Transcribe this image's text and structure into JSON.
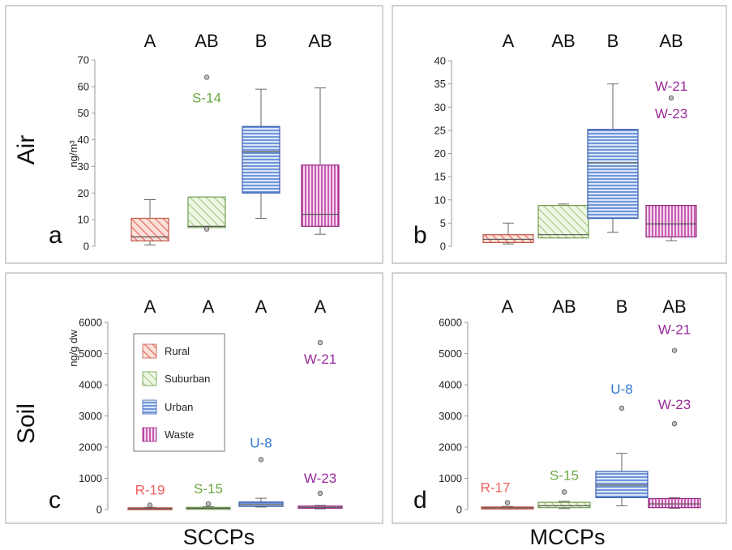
{
  "figure": {
    "row_labels": [
      "Air",
      "Soil"
    ],
    "column_labels": [
      "SCCPs",
      "MCCPs"
    ],
    "legend": [
      {
        "name": "Rural",
        "color": "#f08070",
        "pattern": "diagonal-hatch"
      },
      {
        "name": "Suburban",
        "color": "#9ccc70",
        "pattern": "diagonal-hatch"
      },
      {
        "name": "Urban",
        "color": "#5b87d6",
        "pattern": "horizontal-lines"
      },
      {
        "name": "Waste",
        "color": "#c040b0",
        "pattern": "vertical-lines"
      }
    ],
    "outlier_colors": {
      "Rural": "#f06060",
      "Suburban": "#6aa842",
      "Urban": "#2f78d0",
      "Waste": "#9a2a9a"
    }
  },
  "chart_data": [
    {
      "type": "boxplot",
      "panel": "a",
      "ylabel": "ng/m³",
      "ylim": [
        0,
        70
      ],
      "yticks": [
        0,
        10,
        20,
        30,
        40,
        50,
        60,
        70
      ],
      "groups": [
        "Rural",
        "Suburban",
        "Urban",
        "Waste"
      ],
      "significance_letters": [
        "A",
        "AB",
        "B",
        "AB"
      ],
      "boxes": [
        {
          "group": "Rural",
          "min": 0.5,
          "q1": 2,
          "median": 3.5,
          "q3": 10.5,
          "max": 17.5
        },
        {
          "group": "Suburban",
          "min": 7,
          "q1": 7,
          "median": 7.5,
          "q3": 18.5,
          "max": 18.5
        },
        {
          "group": "Urban",
          "min": 10.5,
          "q1": 20,
          "median": 35.5,
          "q3": 45,
          "max": 59
        },
        {
          "group": "Waste",
          "min": 4.5,
          "q1": 7.5,
          "median": 12,
          "q3": 30.5,
          "max": 59.5
        }
      ],
      "outliers": [
        {
          "group": "Suburban",
          "value": 63.5,
          "label": "S-14"
        },
        {
          "group": "Suburban",
          "value": 6.5,
          "label": ""
        }
      ]
    },
    {
      "type": "boxplot",
      "panel": "b",
      "ylabel": "",
      "ylim": [
        0,
        40
      ],
      "yticks": [
        0,
        5,
        10,
        15,
        20,
        25,
        30,
        35,
        40
      ],
      "groups": [
        "Rural",
        "Suburban",
        "Urban",
        "Waste"
      ],
      "significance_letters": [
        "A",
        "AB",
        "B",
        "AB"
      ],
      "boxes": [
        {
          "group": "Rural",
          "min": 0.5,
          "q1": 0.8,
          "median": 1.5,
          "q3": 2.5,
          "max": 5
        },
        {
          "group": "Suburban",
          "min": 1.8,
          "q1": 1.8,
          "median": 2.5,
          "q3": 8.8,
          "max": 9.1
        },
        {
          "group": "Urban",
          "min": 3,
          "q1": 6,
          "median": 18,
          "q3": 25.2,
          "max": 35
        },
        {
          "group": "Waste",
          "min": 1.2,
          "q1": 2,
          "median": 4.8,
          "q3": 8.8,
          "max": 8.8
        }
      ],
      "outliers": [
        {
          "group": "Waste",
          "value": 32,
          "label": "W-21"
        },
        {
          "group": "Waste",
          "value": 32,
          "label": "W-23"
        }
      ]
    },
    {
      "type": "boxplot",
      "panel": "c",
      "ylabel": "ng/g dw",
      "ylim": [
        0,
        6000
      ],
      "yticks": [
        0,
        1000,
        2000,
        3000,
        4000,
        5000,
        6000
      ],
      "groups": [
        "Rural",
        "Suburban",
        "Urban",
        "Waste"
      ],
      "significance_letters": [
        "A",
        "A",
        "A",
        "A"
      ],
      "boxes": [
        {
          "group": "Rural",
          "min": 5,
          "q1": 15,
          "median": 30,
          "q3": 55,
          "max": 70
        },
        {
          "group": "Suburban",
          "min": 10,
          "q1": 20,
          "median": 40,
          "q3": 70,
          "max": 90
        },
        {
          "group": "Urban",
          "min": 80,
          "q1": 100,
          "median": 160,
          "q3": 240,
          "max": 360
        },
        {
          "group": "Waste",
          "min": 20,
          "q1": 40,
          "median": 70,
          "q3": 110,
          "max": 130
        }
      ],
      "outliers": [
        {
          "group": "Rural",
          "value": 140,
          "label": "R-19"
        },
        {
          "group": "Suburban",
          "value": 180,
          "label": "S-15"
        },
        {
          "group": "Urban",
          "value": 1600,
          "label": "U-8"
        },
        {
          "group": "Waste",
          "value": 5350,
          "label": "W-21"
        },
        {
          "group": "Waste",
          "value": 520,
          "label": "W-23"
        }
      ]
    },
    {
      "type": "boxplot",
      "panel": "d",
      "ylabel": "",
      "ylim": [
        0,
        6000
      ],
      "yticks": [
        0,
        1000,
        2000,
        3000,
        4000,
        5000,
        6000
      ],
      "groups": [
        "Rural",
        "Suburban",
        "Urban",
        "Waste"
      ],
      "significance_letters": [
        "A",
        "AB",
        "B",
        "AB"
      ],
      "boxes": [
        {
          "group": "Rural",
          "min": 10,
          "q1": 25,
          "median": 50,
          "q3": 80,
          "max": 100
        },
        {
          "group": "Suburban",
          "min": 30,
          "q1": 60,
          "median": 120,
          "q3": 230,
          "max": 260
        },
        {
          "group": "Urban",
          "min": 120,
          "q1": 380,
          "median": 780,
          "q3": 1220,
          "max": 1800
        },
        {
          "group": "Waste",
          "min": 40,
          "q1": 60,
          "median": 180,
          "q3": 350,
          "max": 380
        }
      ],
      "outliers": [
        {
          "group": "Rural",
          "value": 220,
          "label": "R-17"
        },
        {
          "group": "Suburban",
          "value": 560,
          "label": "S-15"
        },
        {
          "group": "Urban",
          "value": 3250,
          "label": "U-8"
        },
        {
          "group": "Waste",
          "value": 5100,
          "label": "W-21"
        },
        {
          "group": "Waste",
          "value": 2750,
          "label": "W-23"
        }
      ]
    }
  ]
}
